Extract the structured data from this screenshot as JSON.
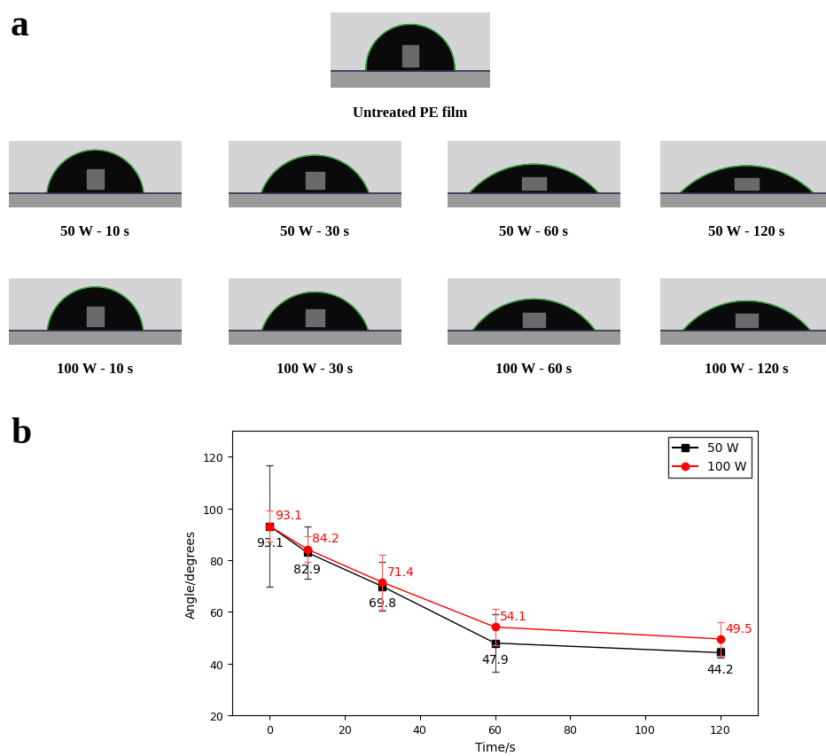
{
  "panel_labels": [
    "a",
    "b"
  ],
  "images": {
    "title": "Untreated PE film",
    "captions": [
      [
        "50 W - 10 s",
        "50 W - 30 s",
        "50 W - 60 s",
        "50 W - 120 s"
      ],
      [
        "100 W - 10 s",
        "100 W - 30 s",
        "100 W - 60 s",
        "100 W - 120 s"
      ]
    ]
  },
  "chart_data": {
    "type": "line",
    "x_label": "Time/s",
    "y_label": "Angle/degrees",
    "x": [
      0,
      10,
      30,
      60,
      120
    ],
    "series": [
      {
        "name": "50 W",
        "color": "#000000",
        "marker": "square",
        "line_style": "solid",
        "values": [
          93.1,
          82.9,
          69.8,
          47.9,
          44.2
        ],
        "errors": [
          23.4,
          10.0,
          9.5,
          11.0,
          2.0
        ]
      },
      {
        "name": "100 W",
        "color": "#ff0000",
        "marker": "circle",
        "line_style": "solid",
        "values": [
          93.1,
          84.2,
          71.4,
          54.1,
          49.5
        ],
        "errors": [
          6.0,
          5.0,
          10.5,
          7.0,
          6.5
        ]
      }
    ],
    "xlim": [
      -10,
      130
    ],
    "ylim": [
      20,
      130
    ],
    "xticks": [
      0,
      20,
      40,
      60,
      80,
      100,
      120
    ],
    "yticks": [
      20,
      40,
      60,
      80,
      100,
      120
    ],
    "legend": "upper right",
    "data_labels": true,
    "grid": false
  }
}
